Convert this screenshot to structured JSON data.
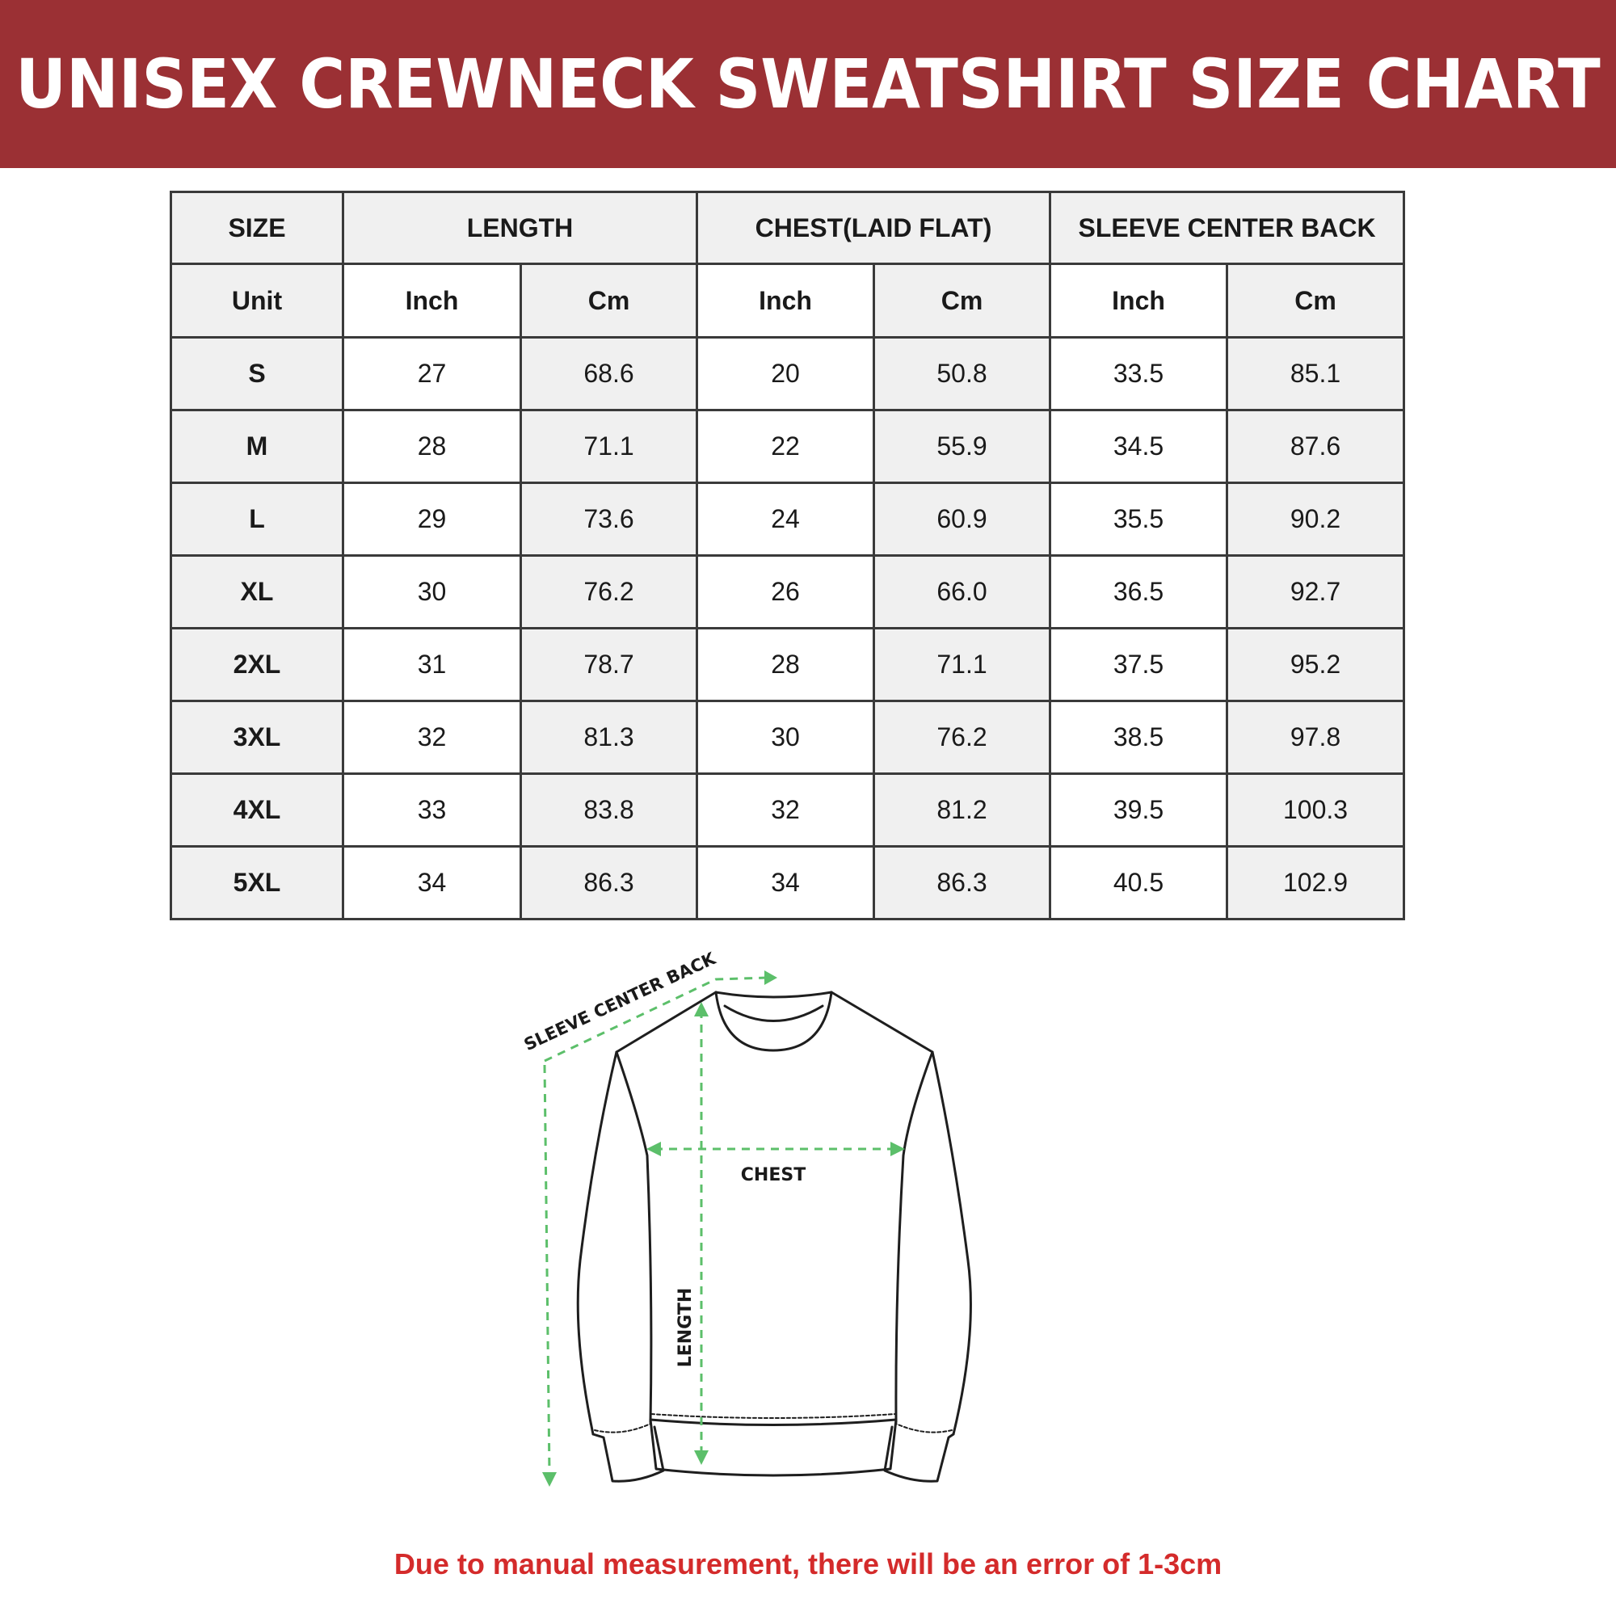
{
  "title": "UNISEX CREWNECK SWEATSHIRT SIZE CHART",
  "table": {
    "group_headers": [
      "SIZE",
      "LENGTH",
      "CHEST(LAID FLAT)",
      "SLEEVE CENTER BACK"
    ],
    "unit_row": [
      "Unit",
      "Inch",
      "Cm",
      "Inch",
      "Cm",
      "Inch",
      "Cm"
    ],
    "rows": [
      [
        "S",
        "27",
        "68.6",
        "20",
        "50.8",
        "33.5",
        "85.1"
      ],
      [
        "M",
        "28",
        "71.1",
        "22",
        "55.9",
        "34.5",
        "87.6"
      ],
      [
        "L",
        "29",
        "73.6",
        "24",
        "60.9",
        "35.5",
        "90.2"
      ],
      [
        "XL",
        "30",
        "76.2",
        "26",
        "66.0",
        "36.5",
        "92.7"
      ],
      [
        "2XL",
        "31",
        "78.7",
        "28",
        "71.1",
        "37.5",
        "95.2"
      ],
      [
        "3XL",
        "32",
        "81.3",
        "30",
        "76.2",
        "38.5",
        "97.8"
      ],
      [
        "4XL",
        "33",
        "83.8",
        "32",
        "81.2",
        "39.5",
        "100.3"
      ],
      [
        "5XL",
        "34",
        "86.3",
        "34",
        "86.3",
        "40.5",
        "102.9"
      ]
    ]
  },
  "diagram": {
    "sleeve_label": "SLEEVE CENTER BACK",
    "chest_label": "CHEST",
    "length_label": "LENGTH",
    "arrow_color": "#5cbf6a"
  },
  "footer_note": "Due to manual measurement, there will be an error of 1-3cm",
  "colors": {
    "banner": "#9b3034",
    "note": "#d42b2b"
  }
}
